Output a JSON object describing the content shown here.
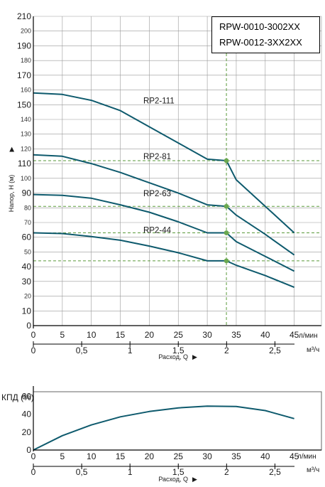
{
  "models": [
    "RPW-0010-3002XX",
    "RPW-0012-3XX2XX"
  ],
  "chart_data": [
    {
      "type": "line",
      "ylabel": "Напор, Н (м)",
      "xlabel": "Расход, Q",
      "x_unit": "л/мин",
      "x2_unit": "м³/ч",
      "xlim": [
        0,
        48
      ],
      "ylim": [
        0,
        210
      ],
      "x_ticks": [
        "0",
        "5",
        "10",
        "15",
        "20",
        "25",
        "30",
        "35",
        "40",
        "45"
      ],
      "x2_ticks": [
        "0",
        "0,5",
        "1",
        "1,5",
        "2",
        "2,5"
      ],
      "y_ticks_major": [
        "0",
        "10",
        "30",
        "40",
        "60",
        "90",
        "110",
        "150",
        "170",
        "190",
        "210"
      ],
      "y_ticks_minor": [
        "20",
        "50",
        "70",
        "80",
        "100",
        "120",
        "130",
        "140",
        "160",
        "180",
        "200"
      ],
      "grid": true,
      "series": [
        {
          "name": "RP2-111",
          "x": [
            0,
            5,
            10,
            15,
            20,
            25,
            30,
            33.3,
            35,
            40,
            45
          ],
          "values": [
            158,
            157,
            153,
            146,
            135,
            124,
            113,
            112,
            99,
            81,
            63
          ]
        },
        {
          "name": "RP2-81",
          "x": [
            0,
            5,
            10,
            15,
            20,
            25,
            30,
            33.3,
            35,
            40,
            45
          ],
          "values": [
            116,
            115,
            110,
            104,
            97,
            90,
            82,
            81,
            75,
            62,
            48
          ]
        },
        {
          "name": "RP2-63",
          "x": [
            0,
            5,
            10,
            15,
            20,
            25,
            30,
            33.3,
            35,
            40,
            45
          ],
          "values": [
            89,
            88.5,
            86.5,
            82,
            77,
            70.5,
            63,
            63,
            57,
            47,
            37
          ]
        },
        {
          "name": "RP2-44",
          "x": [
            0,
            5,
            10,
            15,
            20,
            25,
            30,
            33.3,
            35,
            40,
            45
          ],
          "values": [
            63,
            62.5,
            60.5,
            58,
            54,
            49.5,
            44,
            44,
            41,
            34,
            26
          ]
        }
      ],
      "marker": {
        "x": 33.3,
        "points": [
          112,
          81,
          63,
          44
        ]
      }
    },
    {
      "type": "line",
      "ylabel": "КПД (%)",
      "xlabel": "Расход, Q",
      "x_unit": "л/мин",
      "x2_unit": "м³/ч",
      "xlim": [
        0,
        48
      ],
      "ylim": [
        0,
        65
      ],
      "y_ticks": [
        "0",
        "20",
        "40",
        "60"
      ],
      "series": [
        {
          "name": "",
          "x": [
            0,
            5,
            10,
            15,
            20,
            25,
            30,
            35,
            40,
            45
          ],
          "values": [
            0,
            16,
            28,
            37,
            43,
            47,
            49,
            48.5,
            44,
            35
          ]
        }
      ]
    }
  ]
}
